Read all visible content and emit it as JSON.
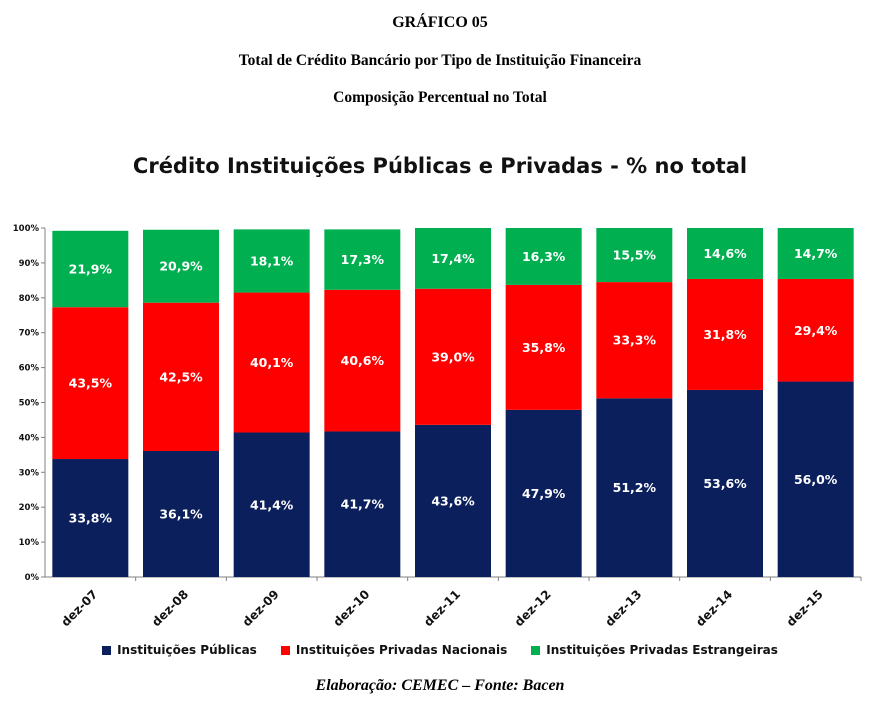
{
  "header": {
    "line1": "GRÁFICO 05",
    "line2": "Total de Crédito Bancário por Tipo de Instituição Financeira",
    "line3": "Composição Percentual no Total"
  },
  "source": "Elaboração: CEMEC – Fonte: Bacen",
  "chart_data": {
    "type": "bar",
    "stacked": true,
    "title": "Crédito Instituições Públicas e Privadas - % no total",
    "categories": [
      "dez-07",
      "dez-08",
      "dez-09",
      "dez-10",
      "dez-11",
      "dez-12",
      "dez-13",
      "dez-14",
      "dez-15"
    ],
    "series": [
      {
        "name": "Instituições Públicas",
        "color": "#0a1f5c",
        "values": [
          33.8,
          36.1,
          41.4,
          41.7,
          43.6,
          47.9,
          51.2,
          53.6,
          56.0
        ],
        "labels": [
          "33,8%",
          "36,1%",
          "41,4%",
          "41,7%",
          "43,6%",
          "47,9%",
          "51,2%",
          "53,6%",
          "56,0%"
        ]
      },
      {
        "name": "Instituições Privadas Nacionais",
        "color": "#ff0000",
        "values": [
          43.5,
          42.5,
          40.1,
          40.6,
          39.0,
          35.8,
          33.3,
          31.8,
          29.4
        ],
        "labels": [
          "43,5%",
          "42,5%",
          "40,1%",
          "40,6%",
          "39,0%",
          "35,8%",
          "33,3%",
          "31,8%",
          "29,4%"
        ]
      },
      {
        "name": "Instituições Privadas Estrangeiras",
        "color": "#00b050",
        "values": [
          21.9,
          20.9,
          18.1,
          17.3,
          17.4,
          16.3,
          15.5,
          14.6,
          14.7
        ],
        "labels": [
          "21,9%",
          "20,9%",
          "18,1%",
          "17,3%",
          "17,4%",
          "16,3%",
          "15,5%",
          "14,6%",
          "14,7%"
        ]
      }
    ],
    "yticks": [
      "0%",
      "10%",
      "20%",
      "30%",
      "40%",
      "50%",
      "60%",
      "70%",
      "80%",
      "90%",
      "100%"
    ],
    "ylim": [
      0,
      100
    ],
    "legend_position": "bottom",
    "grid": false
  }
}
